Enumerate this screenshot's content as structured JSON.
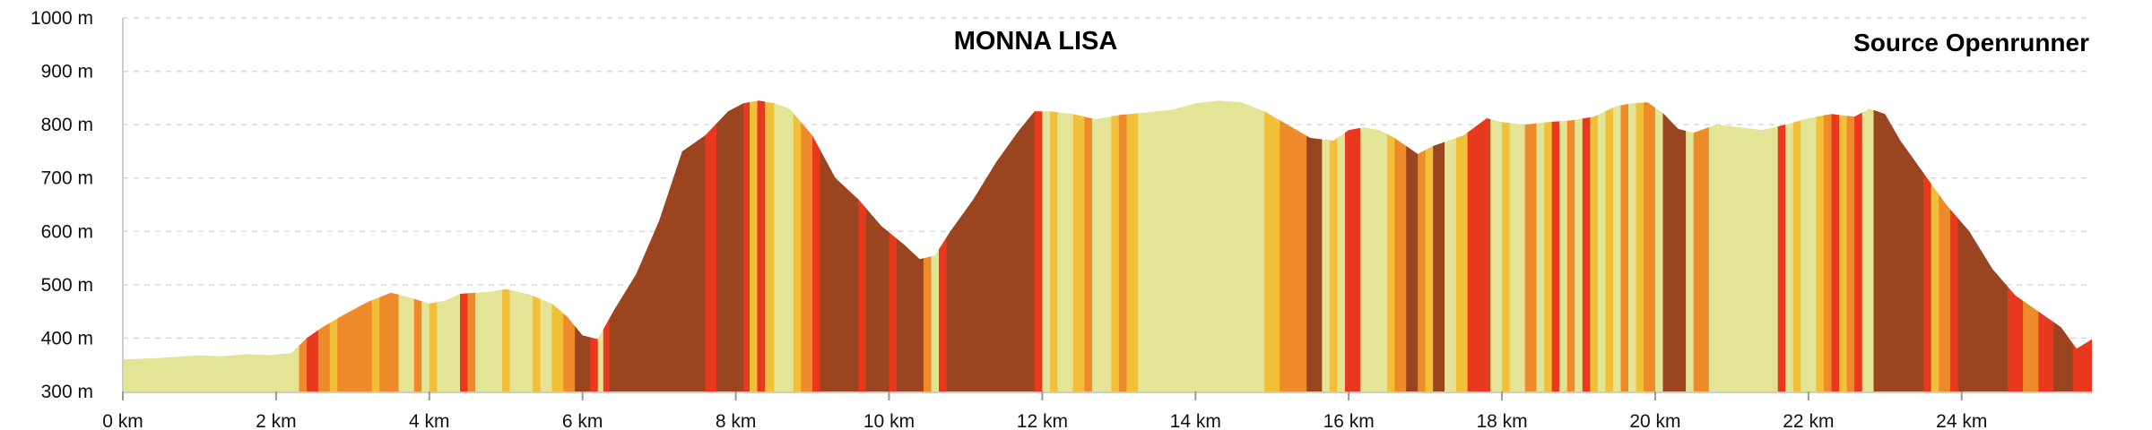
{
  "chart_data": {
    "type": "area",
    "title": "MONNA LISA",
    "source": "Source Openrunner",
    "xlabel": "",
    "ylabel": "",
    "xlim": [
      0,
      25.7
    ],
    "ylim": [
      300,
      1000
    ],
    "x_ticks": [
      {
        "value": 0,
        "label": "0 km"
      },
      {
        "value": 2,
        "label": "2 km"
      },
      {
        "value": 4,
        "label": "4 km"
      },
      {
        "value": 6,
        "label": "6 km"
      },
      {
        "value": 8,
        "label": "8 km"
      },
      {
        "value": 10,
        "label": "10 km"
      },
      {
        "value": 12,
        "label": "12 km"
      },
      {
        "value": 14,
        "label": "14 km"
      },
      {
        "value": 16,
        "label": "16 km"
      },
      {
        "value": 18,
        "label": "18 km"
      },
      {
        "value": 20,
        "label": "20 km"
      },
      {
        "value": 22,
        "label": "22 km"
      },
      {
        "value": 24,
        "label": "24 km"
      }
    ],
    "y_ticks": [
      {
        "value": 300,
        "label": "300 m"
      },
      {
        "value": 400,
        "label": "400 m"
      },
      {
        "value": 500,
        "label": "500 m"
      },
      {
        "value": 600,
        "label": "600 m"
      },
      {
        "value": 700,
        "label": "700 m"
      },
      {
        "value": 800,
        "label": "800 m"
      },
      {
        "value": 900,
        "label": "900 m"
      },
      {
        "value": 1000,
        "label": "1000 m"
      }
    ],
    "grid": true,
    "slope_colors": {
      "flat": "#e4e497",
      "gentle": "#f2c038",
      "moderate": "#ef8a2a",
      "steep": "#e8391e",
      "very_steep": "#9a4520"
    },
    "x": [
      0,
      0.5,
      1.0,
      1.3,
      1.6,
      1.9,
      2.2,
      2.4,
      2.6,
      2.9,
      3.2,
      3.5,
      3.7,
      4.0,
      4.2,
      4.4,
      4.6,
      4.8,
      5.0,
      5.3,
      5.6,
      5.8,
      6.0,
      6.2,
      6.4,
      6.7,
      7.0,
      7.3,
      7.6,
      7.9,
      8.1,
      8.3,
      8.5,
      8.7,
      9.0,
      9.3,
      9.6,
      9.9,
      10.2,
      10.4,
      10.6,
      10.8,
      11.1,
      11.4,
      11.7,
      11.9,
      12.1,
      12.4,
      12.7,
      13.0,
      13.3,
      13.7,
      14.0,
      14.3,
      14.6,
      14.9,
      15.2,
      15.5,
      15.8,
      16.0,
      16.2,
      16.4,
      16.6,
      16.9,
      17.1,
      17.3,
      17.5,
      17.8,
      18.0,
      18.3,
      18.6,
      18.9,
      19.2,
      19.5,
      19.7,
      19.9,
      20.1,
      20.3,
      20.5,
      20.8,
      21.1,
      21.4,
      21.7,
      22.0,
      22.3,
      22.6,
      22.8,
      23.0,
      23.2,
      23.5,
      23.8,
      24.1,
      24.4,
      24.7,
      25.0,
      25.3,
      25.5,
      25.7
    ],
    "elevation": [
      360,
      363,
      368,
      366,
      370,
      368,
      372,
      400,
      420,
      445,
      468,
      485,
      478,
      465,
      470,
      483,
      485,
      487,
      492,
      482,
      465,
      440,
      405,
      398,
      450,
      520,
      620,
      750,
      780,
      825,
      840,
      845,
      840,
      830,
      780,
      700,
      660,
      610,
      575,
      548,
      555,
      600,
      660,
      730,
      790,
      825,
      825,
      820,
      810,
      818,
      822,
      828,
      840,
      845,
      842,
      825,
      800,
      775,
      770,
      790,
      795,
      790,
      775,
      745,
      760,
      770,
      780,
      812,
      805,
      800,
      805,
      808,
      815,
      835,
      840,
      842,
      822,
      792,
      785,
      800,
      795,
      790,
      800,
      812,
      820,
      815,
      830,
      820,
      770,
      710,
      650,
      600,
      530,
      480,
      450,
      420,
      380,
      398
    ],
    "segments": [
      {
        "x0": 0,
        "x1": 2.3,
        "slope": "flat"
      },
      {
        "x0": 2.3,
        "x1": 2.4,
        "slope": "moderate"
      },
      {
        "x0": 2.4,
        "x1": 2.55,
        "slope": "steep"
      },
      {
        "x0": 2.55,
        "x1": 2.7,
        "slope": "moderate"
      },
      {
        "x0": 2.7,
        "x1": 2.8,
        "slope": "gentle"
      },
      {
        "x0": 2.8,
        "x1": 3.25,
        "slope": "moderate"
      },
      {
        "x0": 3.25,
        "x1": 3.35,
        "slope": "gentle"
      },
      {
        "x0": 3.35,
        "x1": 3.6,
        "slope": "moderate"
      },
      {
        "x0": 3.6,
        "x1": 3.8,
        "slope": "flat"
      },
      {
        "x0": 3.8,
        "x1": 3.9,
        "slope": "moderate"
      },
      {
        "x0": 3.9,
        "x1": 4.0,
        "slope": "flat"
      },
      {
        "x0": 4.0,
        "x1": 4.1,
        "slope": "gentle"
      },
      {
        "x0": 4.1,
        "x1": 4.4,
        "slope": "flat"
      },
      {
        "x0": 4.4,
        "x1": 4.5,
        "slope": "steep"
      },
      {
        "x0": 4.5,
        "x1": 4.6,
        "slope": "moderate"
      },
      {
        "x0": 4.6,
        "x1": 4.95,
        "slope": "flat"
      },
      {
        "x0": 4.95,
        "x1": 5.05,
        "slope": "gentle"
      },
      {
        "x0": 5.05,
        "x1": 5.35,
        "slope": "flat"
      },
      {
        "x0": 5.35,
        "x1": 5.45,
        "slope": "gentle"
      },
      {
        "x0": 5.45,
        "x1": 5.6,
        "slope": "flat"
      },
      {
        "x0": 5.6,
        "x1": 5.75,
        "slope": "gentle"
      },
      {
        "x0": 5.75,
        "x1": 5.9,
        "slope": "moderate"
      },
      {
        "x0": 5.9,
        "x1": 6.1,
        "slope": "very_steep"
      },
      {
        "x0": 6.1,
        "x1": 6.2,
        "slope": "steep"
      },
      {
        "x0": 6.2,
        "x1": 6.27,
        "slope": "flat"
      },
      {
        "x0": 6.27,
        "x1": 6.35,
        "slope": "steep"
      },
      {
        "x0": 6.35,
        "x1": 7.6,
        "slope": "very_steep"
      },
      {
        "x0": 7.6,
        "x1": 7.75,
        "slope": "steep"
      },
      {
        "x0": 7.75,
        "x1": 7.85,
        "slope": "very_steep"
      },
      {
        "x0": 7.85,
        "x1": 8.1,
        "slope": "very_steep"
      },
      {
        "x0": 8.1,
        "x1": 8.18,
        "slope": "steep"
      },
      {
        "x0": 8.18,
        "x1": 8.28,
        "slope": "gentle"
      },
      {
        "x0": 8.28,
        "x1": 8.38,
        "slope": "steep"
      },
      {
        "x0": 8.38,
        "x1": 8.5,
        "slope": "gentle"
      },
      {
        "x0": 8.5,
        "x1": 8.75,
        "slope": "flat"
      },
      {
        "x0": 8.75,
        "x1": 8.85,
        "slope": "gentle"
      },
      {
        "x0": 8.85,
        "x1": 9.0,
        "slope": "moderate"
      },
      {
        "x0": 9.0,
        "x1": 9.1,
        "slope": "steep"
      },
      {
        "x0": 9.1,
        "x1": 9.6,
        "slope": "very_steep"
      },
      {
        "x0": 9.6,
        "x1": 9.7,
        "slope": "steep"
      },
      {
        "x0": 9.7,
        "x1": 10.0,
        "slope": "very_steep"
      },
      {
        "x0": 10.0,
        "x1": 10.1,
        "slope": "steep"
      },
      {
        "x0": 10.1,
        "x1": 10.45,
        "slope": "very_steep"
      },
      {
        "x0": 10.45,
        "x1": 10.55,
        "slope": "moderate"
      },
      {
        "x0": 10.55,
        "x1": 10.65,
        "slope": "flat"
      },
      {
        "x0": 10.65,
        "x1": 10.75,
        "slope": "steep"
      },
      {
        "x0": 10.75,
        "x1": 11.9,
        "slope": "very_steep"
      },
      {
        "x0": 11.9,
        "x1": 12.0,
        "slope": "steep"
      },
      {
        "x0": 12.0,
        "x1": 12.1,
        "slope": "flat"
      },
      {
        "x0": 12.1,
        "x1": 12.2,
        "slope": "gentle"
      },
      {
        "x0": 12.2,
        "x1": 12.4,
        "slope": "flat"
      },
      {
        "x0": 12.4,
        "x1": 12.55,
        "slope": "gentle"
      },
      {
        "x0": 12.55,
        "x1": 12.65,
        "slope": "moderate"
      },
      {
        "x0": 12.65,
        "x1": 12.9,
        "slope": "flat"
      },
      {
        "x0": 12.9,
        "x1": 13.0,
        "slope": "gentle"
      },
      {
        "x0": 13.0,
        "x1": 13.1,
        "slope": "moderate"
      },
      {
        "x0": 13.1,
        "x1": 13.25,
        "slope": "gentle"
      },
      {
        "x0": 13.25,
        "x1": 14.9,
        "slope": "flat"
      },
      {
        "x0": 14.9,
        "x1": 15.1,
        "slope": "gentle"
      },
      {
        "x0": 15.1,
        "x1": 15.45,
        "slope": "moderate"
      },
      {
        "x0": 15.45,
        "x1": 15.65,
        "slope": "very_steep"
      },
      {
        "x0": 15.65,
        "x1": 15.75,
        "slope": "flat"
      },
      {
        "x0": 15.75,
        "x1": 15.85,
        "slope": "gentle"
      },
      {
        "x0": 15.85,
        "x1": 15.95,
        "slope": "flat"
      },
      {
        "x0": 15.95,
        "x1": 16.15,
        "slope": "steep"
      },
      {
        "x0": 16.15,
        "x1": 16.25,
        "slope": "flat"
      },
      {
        "x0": 16.25,
        "x1": 16.5,
        "slope": "flat"
      },
      {
        "x0": 16.5,
        "x1": 16.6,
        "slope": "gentle"
      },
      {
        "x0": 16.6,
        "x1": 16.75,
        "slope": "moderate"
      },
      {
        "x0": 16.75,
        "x1": 16.9,
        "slope": "very_steep"
      },
      {
        "x0": 16.9,
        "x1": 17.0,
        "slope": "moderate"
      },
      {
        "x0": 17.0,
        "x1": 17.1,
        "slope": "gentle"
      },
      {
        "x0": 17.1,
        "x1": 17.25,
        "slope": "very_steep"
      },
      {
        "x0": 17.25,
        "x1": 17.4,
        "slope": "flat"
      },
      {
        "x0": 17.4,
        "x1": 17.55,
        "slope": "gentle"
      },
      {
        "x0": 17.55,
        "x1": 17.85,
        "slope": "steep"
      },
      {
        "x0": 17.85,
        "x1": 18.0,
        "slope": "flat"
      },
      {
        "x0": 18.0,
        "x1": 18.1,
        "slope": "gentle"
      },
      {
        "x0": 18.1,
        "x1": 18.3,
        "slope": "flat"
      },
      {
        "x0": 18.3,
        "x1": 18.45,
        "slope": "moderate"
      },
      {
        "x0": 18.45,
        "x1": 18.55,
        "slope": "flat"
      },
      {
        "x0": 18.55,
        "x1": 18.65,
        "slope": "gentle"
      },
      {
        "x0": 18.65,
        "x1": 18.75,
        "slope": "steep"
      },
      {
        "x0": 18.75,
        "x1": 18.85,
        "slope": "flat"
      },
      {
        "x0": 18.85,
        "x1": 18.95,
        "slope": "moderate"
      },
      {
        "x0": 18.95,
        "x1": 19.05,
        "slope": "flat"
      },
      {
        "x0": 19.05,
        "x1": 19.15,
        "slope": "steep"
      },
      {
        "x0": 19.15,
        "x1": 19.25,
        "slope": "gentle"
      },
      {
        "x0": 19.25,
        "x1": 19.35,
        "slope": "flat"
      },
      {
        "x0": 19.35,
        "x1": 19.45,
        "slope": "gentle"
      },
      {
        "x0": 19.45,
        "x1": 19.55,
        "slope": "flat"
      },
      {
        "x0": 19.55,
        "x1": 19.65,
        "slope": "moderate"
      },
      {
        "x0": 19.65,
        "x1": 19.75,
        "slope": "flat"
      },
      {
        "x0": 19.75,
        "x1": 19.85,
        "slope": "gentle"
      },
      {
        "x0": 19.85,
        "x1": 20.0,
        "slope": "moderate"
      },
      {
        "x0": 20.0,
        "x1": 20.1,
        "slope": "flat"
      },
      {
        "x0": 20.1,
        "x1": 20.4,
        "slope": "very_steep"
      },
      {
        "x0": 20.4,
        "x1": 20.5,
        "slope": "flat"
      },
      {
        "x0": 20.5,
        "x1": 20.7,
        "slope": "moderate"
      },
      {
        "x0": 20.7,
        "x1": 21.6,
        "slope": "flat"
      },
      {
        "x0": 21.6,
        "x1": 21.7,
        "slope": "steep"
      },
      {
        "x0": 21.7,
        "x1": 21.8,
        "slope": "flat"
      },
      {
        "x0": 21.8,
        "x1": 21.9,
        "slope": "gentle"
      },
      {
        "x0": 21.9,
        "x1": 22.1,
        "slope": "flat"
      },
      {
        "x0": 22.1,
        "x1": 22.2,
        "slope": "gentle"
      },
      {
        "x0": 22.2,
        "x1": 22.3,
        "slope": "moderate"
      },
      {
        "x0": 22.3,
        "x1": 22.4,
        "slope": "steep"
      },
      {
        "x0": 22.4,
        "x1": 22.5,
        "slope": "gentle"
      },
      {
        "x0": 22.5,
        "x1": 22.6,
        "slope": "moderate"
      },
      {
        "x0": 22.6,
        "x1": 22.7,
        "slope": "steep"
      },
      {
        "x0": 22.7,
        "x1": 22.85,
        "slope": "flat"
      },
      {
        "x0": 22.85,
        "x1": 23.1,
        "slope": "very_steep"
      },
      {
        "x0": 23.1,
        "x1": 23.5,
        "slope": "very_steep"
      },
      {
        "x0": 23.5,
        "x1": 23.6,
        "slope": "steep"
      },
      {
        "x0": 23.6,
        "x1": 23.7,
        "slope": "gentle"
      },
      {
        "x0": 23.7,
        "x1": 23.85,
        "slope": "moderate"
      },
      {
        "x0": 23.85,
        "x1": 23.95,
        "slope": "steep"
      },
      {
        "x0": 23.95,
        "x1": 24.6,
        "slope": "very_steep"
      },
      {
        "x0": 24.6,
        "x1": 24.8,
        "slope": "steep"
      },
      {
        "x0": 24.8,
        "x1": 25.0,
        "slope": "moderate"
      },
      {
        "x0": 25.0,
        "x1": 25.2,
        "slope": "steep"
      },
      {
        "x0": 25.2,
        "x1": 25.45,
        "slope": "very_steep"
      },
      {
        "x0": 25.45,
        "x1": 25.7,
        "slope": "steep"
      }
    ]
  }
}
